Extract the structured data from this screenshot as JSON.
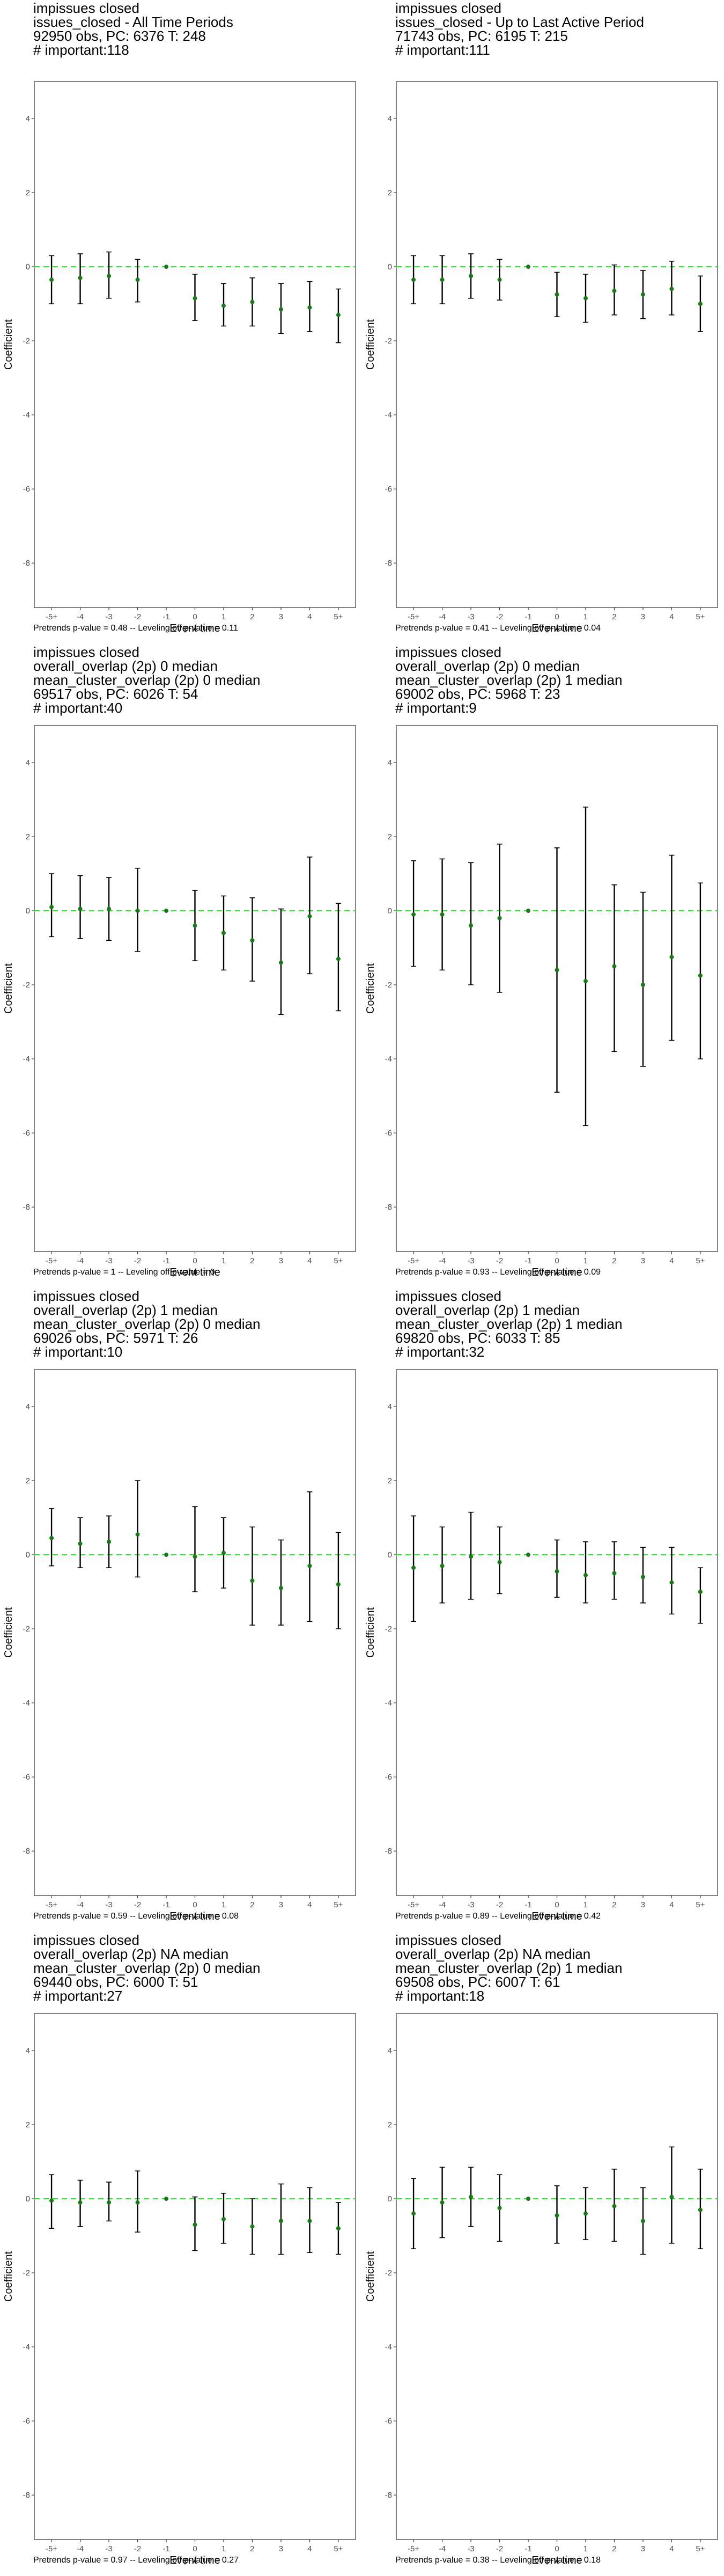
{
  "chart_data": [
    {
      "type": "scatter",
      "title_lines": [
        "impissues closed",
        "issues_closed - All Time Periods",
        "92950 obs, PC: 6376 T: 248",
        "# important:118"
      ],
      "footer": "Pretrends p-value = 0.48 -- Leveling off p-value = 0.11",
      "xlabel": "Event time",
      "ylabel": "Coefficient",
      "categories": [
        "-5+",
        "-4",
        "-3",
        "-2",
        "-1",
        "0",
        "1",
        "2",
        "3",
        "4",
        "5+"
      ],
      "ylim": [
        -9.2,
        5
      ],
      "yticks": [
        4,
        2,
        0,
        -2,
        -4,
        -6,
        -8
      ],
      "estimate": [
        -0.35,
        -0.3,
        -0.25,
        -0.35,
        0,
        -0.85,
        -1.05,
        -0.95,
        -1.15,
        -1.1,
        -1.3
      ],
      "ci_lower": [
        -1.0,
        -1.0,
        -0.85,
        -0.95,
        0,
        -1.45,
        -1.6,
        -1.6,
        -1.8,
        -1.75,
        -2.05
      ],
      "ci_upper": [
        0.3,
        0.35,
        0.4,
        0.2,
        0,
        -0.2,
        -0.45,
        -0.3,
        -0.45,
        -0.4,
        -0.6
      ],
      "reference_line": 0
    },
    {
      "type": "scatter",
      "title_lines": [
        "impissues closed",
        "issues_closed - Up to Last Active Period",
        "71743 obs, PC: 6195 T: 215",
        "# important:111"
      ],
      "footer": "Pretrends p-value = 0.41 -- Leveling off p-value = 0.04",
      "xlabel": "Event time",
      "ylabel": "Coefficient",
      "categories": [
        "-5+",
        "-4",
        "-3",
        "-2",
        "-1",
        "0",
        "1",
        "2",
        "3",
        "4",
        "5+"
      ],
      "ylim": [
        -9.2,
        5
      ],
      "yticks": [
        4,
        2,
        0,
        -2,
        -4,
        -6,
        -8
      ],
      "estimate": [
        -0.35,
        -0.35,
        -0.25,
        -0.35,
        0,
        -0.75,
        -0.85,
        -0.65,
        -0.75,
        -0.6,
        -1.0
      ],
      "ci_lower": [
        -1.0,
        -1.0,
        -0.85,
        -0.9,
        0,
        -1.35,
        -1.5,
        -1.3,
        -1.4,
        -1.3,
        -1.75
      ],
      "ci_upper": [
        0.3,
        0.3,
        0.35,
        0.2,
        0,
        -0.15,
        -0.2,
        0.05,
        -0.1,
        0.15,
        -0.25
      ],
      "reference_line": 0
    },
    {
      "type": "scatter",
      "title_lines": [
        "impissues closed",
        "overall_overlap (2p) 0 median",
        "mean_cluster_overlap (2p) 0 median",
        "69517 obs, PC: 6026 T: 54",
        "# important:40"
      ],
      "footer": "Pretrends p-value = 1 -- Leveling off p-value = 0",
      "xlabel": "Event time",
      "ylabel": "Coefficient",
      "categories": [
        "-5+",
        "-4",
        "-3",
        "-2",
        "-1",
        "0",
        "1",
        "2",
        "3",
        "4",
        "5+"
      ],
      "ylim": [
        -9.2,
        5
      ],
      "yticks": [
        4,
        2,
        0,
        -2,
        -4,
        -6,
        -8
      ],
      "estimate": [
        0.1,
        0.05,
        0.05,
        0.0,
        0,
        -0.4,
        -0.6,
        -0.8,
        -1.4,
        -0.15,
        -1.3
      ],
      "ci_lower": [
        -0.7,
        -0.75,
        -0.8,
        -1.1,
        0,
        -1.35,
        -1.6,
        -1.9,
        -2.8,
        -1.7,
        -2.7
      ],
      "ci_upper": [
        1.0,
        0.95,
        0.9,
        1.15,
        0,
        0.55,
        0.4,
        0.35,
        0.05,
        1.45,
        0.2
      ],
      "reference_line": 0
    },
    {
      "type": "scatter",
      "title_lines": [
        "impissues closed",
        "overall_overlap (2p) 0 median",
        "mean_cluster_overlap (2p) 1 median",
        "69002 obs, PC: 5968 T: 23",
        "# important:9"
      ],
      "footer": "Pretrends p-value = 0.93 -- Leveling off p-value = 0.09",
      "xlabel": "Event time",
      "ylabel": "Coefficient",
      "categories": [
        "-5+",
        "-4",
        "-3",
        "-2",
        "-1",
        "0",
        "1",
        "2",
        "3",
        "4",
        "5+"
      ],
      "ylim": [
        -9.2,
        5
      ],
      "yticks": [
        4,
        2,
        0,
        -2,
        -4,
        -6,
        -8
      ],
      "estimate": [
        -0.1,
        -0.1,
        -0.4,
        -0.2,
        0,
        -1.6,
        -1.9,
        -1.5,
        -2.0,
        -1.25,
        -1.75
      ],
      "ci_lower": [
        -1.5,
        -1.6,
        -2.0,
        -2.2,
        0,
        -4.9,
        -5.8,
        -3.8,
        -4.2,
        -3.5,
        -4.0
      ],
      "ci_upper": [
        1.35,
        1.4,
        1.3,
        1.8,
        0,
        1.7,
        2.8,
        0.7,
        0.5,
        1.5,
        0.75
      ],
      "reference_line": 0
    },
    {
      "type": "scatter",
      "title_lines": [
        "impissues closed",
        "overall_overlap (2p) 1 median",
        "mean_cluster_overlap (2p) 0 median",
        "69026 obs, PC: 5971 T: 26",
        "# important:10"
      ],
      "footer": "Pretrends p-value = 0.59 -- Leveling off p-value = 0.08",
      "xlabel": "Event time",
      "ylabel": "Coefficient",
      "categories": [
        "-5+",
        "-4",
        "-3",
        "-2",
        "-1",
        "0",
        "1",
        "2",
        "3",
        "4",
        "5+"
      ],
      "ylim": [
        -9.2,
        5
      ],
      "yticks": [
        4,
        2,
        0,
        -2,
        -4,
        -6,
        -8
      ],
      "estimate": [
        0.45,
        0.3,
        0.35,
        0.55,
        0,
        -0.05,
        0.05,
        -0.7,
        -0.9,
        -0.3,
        -0.8
      ],
      "ci_lower": [
        -0.3,
        -0.35,
        -0.35,
        -0.6,
        0,
        -1.0,
        -0.9,
        -1.9,
        -1.9,
        -1.8,
        -2.0
      ],
      "ci_upper": [
        1.25,
        1.0,
        1.05,
        2.0,
        0,
        1.3,
        1.0,
        0.75,
        0.4,
        1.7,
        0.6
      ],
      "reference_line": 0
    },
    {
      "type": "scatter",
      "title_lines": [
        "impissues closed",
        "overall_overlap (2p) 1 median",
        "mean_cluster_overlap (2p) 1 median",
        "69820 obs, PC: 6033 T: 85",
        "# important:32"
      ],
      "footer": "Pretrends p-value = 0.89 -- Leveling off p-value = 0.42",
      "xlabel": "Event time",
      "ylabel": "Coefficient",
      "categories": [
        "-5+",
        "-4",
        "-3",
        "-2",
        "-1",
        "0",
        "1",
        "2",
        "3",
        "4",
        "5+"
      ],
      "ylim": [
        -9.2,
        5
      ],
      "yticks": [
        4,
        2,
        0,
        -2,
        -4,
        -6,
        -8
      ],
      "estimate": [
        -0.35,
        -0.3,
        -0.05,
        -0.2,
        0,
        -0.45,
        -0.55,
        -0.5,
        -0.6,
        -0.75,
        -1.0
      ],
      "ci_lower": [
        -1.8,
        -1.3,
        -1.2,
        -1.05,
        0,
        -1.15,
        -1.3,
        -1.2,
        -1.3,
        -1.6,
        -1.85
      ],
      "ci_upper": [
        1.05,
        0.75,
        1.15,
        0.75,
        0,
        0.4,
        0.35,
        0.35,
        0.2,
        0.2,
        -0.35
      ],
      "reference_line": 0
    },
    {
      "type": "scatter",
      "title_lines": [
        "impissues closed",
        "overall_overlap (2p) NA median",
        "mean_cluster_overlap (2p) 0 median",
        "69440 obs, PC: 6000 T: 51",
        "# important:27"
      ],
      "footer": "Pretrends p-value = 0.97 -- Leveling off p-value = 0.27",
      "xlabel": "Event time",
      "ylabel": "Coefficient",
      "categories": [
        "-5+",
        "-4",
        "-3",
        "-2",
        "-1",
        "0",
        "1",
        "2",
        "3",
        "4",
        "5+"
      ],
      "ylim": [
        -9.2,
        5
      ],
      "yticks": [
        4,
        2,
        0,
        -2,
        -4,
        -6,
        -8
      ],
      "estimate": [
        -0.05,
        -0.1,
        -0.1,
        -0.1,
        0,
        -0.7,
        -0.55,
        -0.75,
        -0.6,
        -0.6,
        -0.8
      ],
      "ci_lower": [
        -0.8,
        -0.75,
        -0.6,
        -0.9,
        0,
        -1.4,
        -1.2,
        -1.5,
        -1.5,
        -1.45,
        -1.5
      ],
      "ci_upper": [
        0.65,
        0.5,
        0.45,
        0.75,
        0,
        0.05,
        0.15,
        0.0,
        0.4,
        0.3,
        -0.1
      ],
      "reference_line": 0
    },
    {
      "type": "scatter",
      "title_lines": [
        "impissues closed",
        "overall_overlap (2p) NA median",
        "mean_cluster_overlap (2p) 1 median",
        "69508 obs, PC: 6007 T: 61",
        "# important:18"
      ],
      "footer": "Pretrends p-value = 0.38 -- Leveling off p-value = 0.18",
      "xlabel": "Event time",
      "ylabel": "Coefficient",
      "categories": [
        "-5+",
        "-4",
        "-3",
        "-2",
        "-1",
        "0",
        "1",
        "2",
        "3",
        "4",
        "5+"
      ],
      "ylim": [
        -9.2,
        5
      ],
      "yticks": [
        4,
        2,
        0,
        -2,
        -4,
        -6,
        -8
      ],
      "estimate": [
        -0.4,
        -0.1,
        0.05,
        -0.25,
        0,
        -0.45,
        -0.4,
        -0.2,
        -0.6,
        0.05,
        -0.3
      ],
      "ci_lower": [
        -1.35,
        -1.05,
        -0.75,
        -1.15,
        0,
        -1.2,
        -1.1,
        -1.15,
        -1.5,
        -1.2,
        -1.35
      ],
      "ci_upper": [
        0.55,
        0.85,
        0.85,
        0.65,
        0,
        0.35,
        0.3,
        0.8,
        0.3,
        1.4,
        0.8
      ],
      "reference_line": 0
    }
  ],
  "colors": {
    "point": "#1a7a1a",
    "errorbar": "#000000",
    "reference_line": "#22dd22",
    "axis": "#333333",
    "tick_label": "#4d4d4d"
  }
}
